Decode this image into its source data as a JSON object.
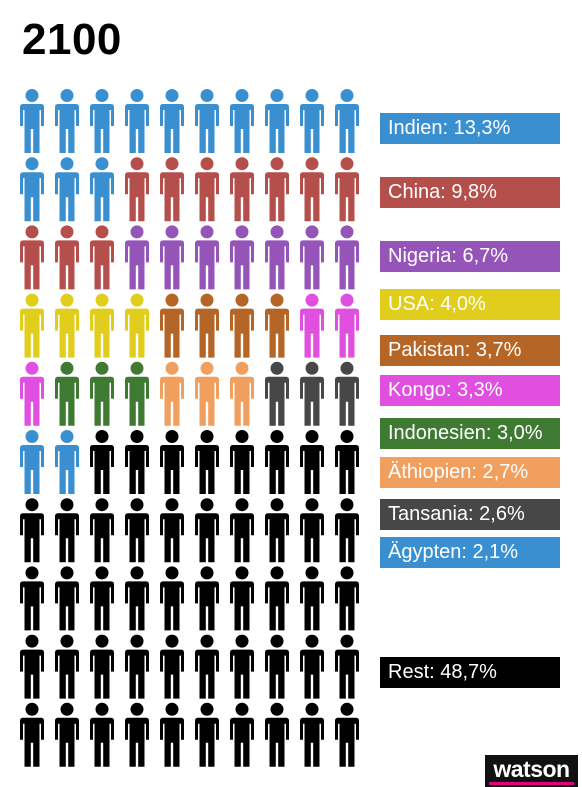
{
  "chart_data": {
    "type": "pictogram",
    "title": "2100",
    "units_total": 100,
    "columns": 10,
    "series": [
      {
        "name": "Indien",
        "label": "Indien: 13,3%",
        "value": 13.3,
        "icons": 13,
        "color": "#3a8fd1"
      },
      {
        "name": "China",
        "label": "China: 9,8%",
        "value": 9.8,
        "icons": 10,
        "color": "#b54f4b"
      },
      {
        "name": "Nigeria",
        "label": "Nigeria: 6,7%",
        "value": 6.7,
        "icons": 7,
        "color": "#9554b8"
      },
      {
        "name": "USA",
        "label": "USA: 4,0%",
        "value": 4.0,
        "icons": 4,
        "color": "#e0cd1c"
      },
      {
        "name": "Pakistan",
        "label": "Pakistan: 3,7%",
        "value": 3.7,
        "icons": 4,
        "color": "#b56526"
      },
      {
        "name": "Kongo",
        "label": "Kongo: 3,3%",
        "value": 3.3,
        "icons": 3,
        "color": "#e04fe0"
      },
      {
        "name": "Indonesien",
        "label": "Indonesien: 3,0%",
        "value": 3.0,
        "icons": 3,
        "color": "#3f7a33"
      },
      {
        "name": "Äthiopien",
        "label": "Äthiopien: 2,7%",
        "value": 2.7,
        "icons": 3,
        "color": "#f19f5f"
      },
      {
        "name": "Tansania",
        "label": "Tansania: 2,6%",
        "value": 2.6,
        "icons": 3,
        "color": "#474747"
      },
      {
        "name": "Ägypten",
        "label": "Ägypten: 2,1%",
        "value": 2.1,
        "icons": 2,
        "color": "#3a8fd1"
      },
      {
        "name": "Rest",
        "label": "Rest: 48,7%",
        "value": 48.7,
        "icons": 48,
        "color": "#000000"
      }
    ]
  },
  "brand": {
    "logo_text": "watson",
    "logo_accent": "#e5007d"
  }
}
